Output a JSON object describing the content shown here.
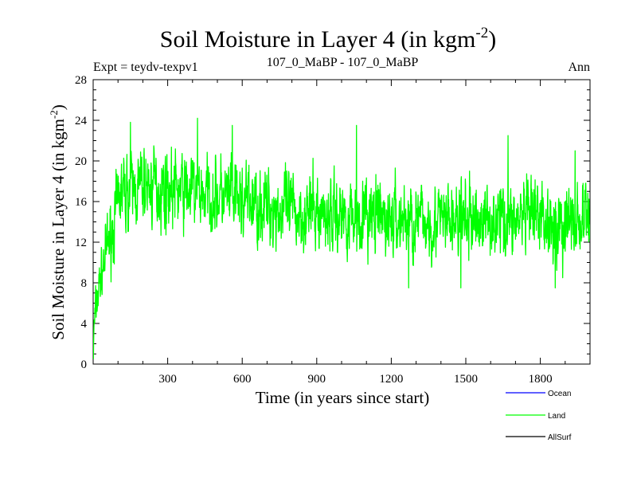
{
  "chart_data": {
    "type": "line",
    "title_main": "Soil Moisture in Layer 4 (in kgm",
    "title_sup": "-2",
    "title_close": ")",
    "expt_label": "Expt = teydv-texpv1",
    "period_label": "107_0_MaBP - 107_0_MaBP",
    "season_label": "Ann",
    "ylabel_main": "Soil Moisture in Layer 4 (in kgm",
    "ylabel_sup": "-2",
    "ylabel_close": ")",
    "xlabel": "Time (in years since start)",
    "xlim": [
      0,
      2000
    ],
    "ylim": [
      0,
      28
    ],
    "x_ticks": [
      300,
      600,
      900,
      1200,
      1500,
      1800
    ],
    "y_ticks": [
      0,
      4,
      8,
      12,
      16,
      20,
      24,
      28
    ],
    "y_tick_labels": [
      "0",
      "4",
      "8",
      "12",
      "16",
      "20",
      "24",
      "28"
    ],
    "x_tick_labels": [
      "300",
      "600",
      "900",
      "1200",
      "1500",
      "1800"
    ],
    "legend": [
      {
        "name": "Ocean",
        "color": "#0000ff"
      },
      {
        "name": "Land",
        "color": "#00ff00"
      },
      {
        "name": "AllSurf",
        "color": "#000000"
      }
    ],
    "series": [
      {
        "name": "Land",
        "color": "#00ff00",
        "n_points": 2000,
        "spinup": {
          "start_value": 0.5,
          "end_year": 100,
          "end_value": 15
        },
        "anchors": [
          [
            100,
            16.5
          ],
          [
            200,
            17.5
          ],
          [
            400,
            17
          ],
          [
            600,
            16
          ],
          [
            800,
            15
          ],
          [
            1000,
            14.7
          ],
          [
            1200,
            14.2
          ],
          [
            1400,
            14.0
          ],
          [
            1600,
            14.3
          ],
          [
            1800,
            14.3
          ],
          [
            1900,
            13.8
          ],
          [
            2000,
            14.3
          ]
        ],
        "noise_amplitude": 2.3,
        "noise_seed": 7,
        "peaks": [
          [
            150,
            23.8
          ],
          [
            420,
            24.2
          ],
          [
            560,
            23.5
          ],
          [
            1060,
            23.5
          ],
          [
            1670,
            22.5
          ],
          [
            1940,
            21.0
          ]
        ],
        "troughs": [
          [
            1270,
            7.5
          ],
          [
            1480,
            7.5
          ],
          [
            1860,
            7.5
          ],
          [
            1890,
            8.5
          ]
        ]
      }
    ]
  }
}
